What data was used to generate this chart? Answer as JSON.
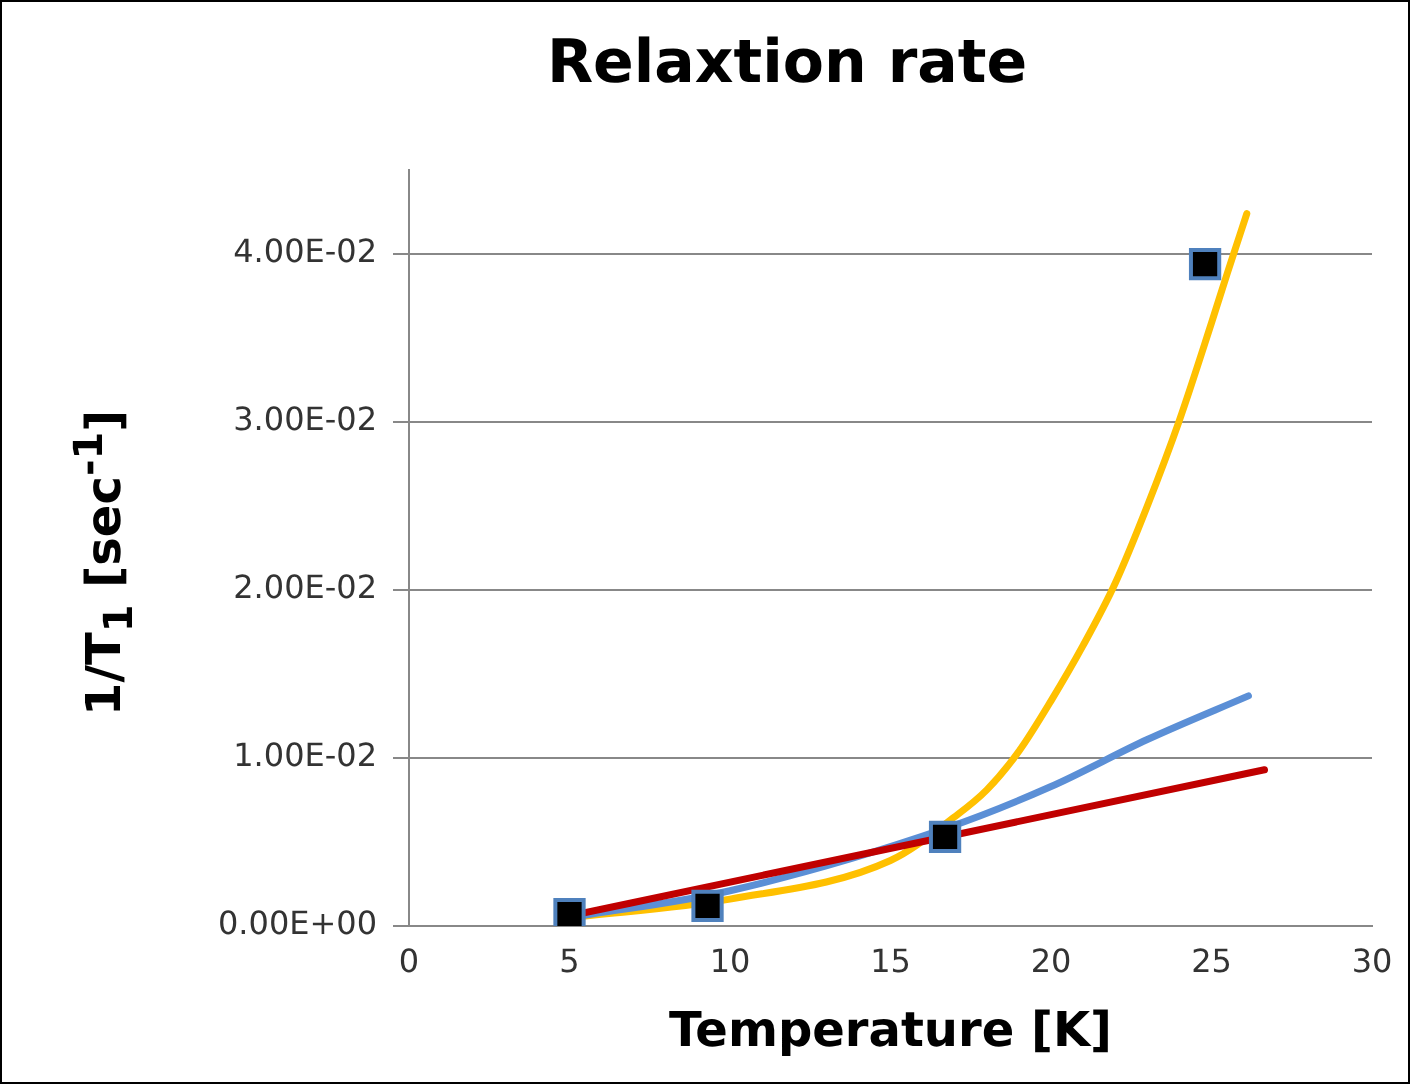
{
  "chart_data": {
    "type": "scatter",
    "title": "Relaxtion rate",
    "xlabel": "Temperature [K]",
    "ylabel": "1/T$_{1}$   [sec$^{-1}$]",
    "xlim": [
      0,
      30
    ],
    "xticks": [
      0,
      5,
      10,
      15,
      20,
      25,
      30
    ],
    "ylim": [
      0,
      0.045
    ],
    "yticks": [
      {
        "value": 0,
        "label": "0.00E+00"
      },
      {
        "value": 0.01,
        "label": "1.00E-02"
      },
      {
        "value": 0.02,
        "label": "2.00E-02"
      },
      {
        "value": 0.03,
        "label": "3.00E-02"
      },
      {
        "value": 0.04,
        "label": "4.00E-02"
      }
    ],
    "grid": "y",
    "legend": false,
    "series": [
      {
        "type": "line",
        "marker": "none",
        "color": "#c00000",
        "x": [
          5,
          26.65
        ],
        "values": [
          0.0006,
          0.0093
        ]
      },
      {
        "type": "line",
        "marker": "none",
        "color": "#5b8fd6",
        "x": [
          5,
          10,
          16.7,
          20,
          23,
          26.15
        ],
        "values": [
          0.0005,
          0.0021,
          0.0058,
          0.0083,
          0.0111,
          0.0137
        ]
      },
      {
        "type": "line",
        "marker": "none",
        "color": "#ffc000",
        "x": [
          5,
          10,
          15,
          17,
          18,
          19,
          20,
          21,
          22,
          23,
          24,
          25,
          25.5,
          26.1
        ],
        "values": [
          0.0005,
          0.0016,
          0.0039,
          0.0065,
          0.0081,
          0.0104,
          0.0134,
          0.0167,
          0.0204,
          0.025,
          0.0301,
          0.0359,
          0.0389,
          0.0424
        ]
      },
      {
        "type": "scatter",
        "marker": "square",
        "color": "#000000",
        "x": [
          5,
          9.3,
          16.7,
          24.8
        ],
        "values": [
          0.0007,
          0.0012,
          0.0053,
          0.0394
        ]
      }
    ]
  }
}
